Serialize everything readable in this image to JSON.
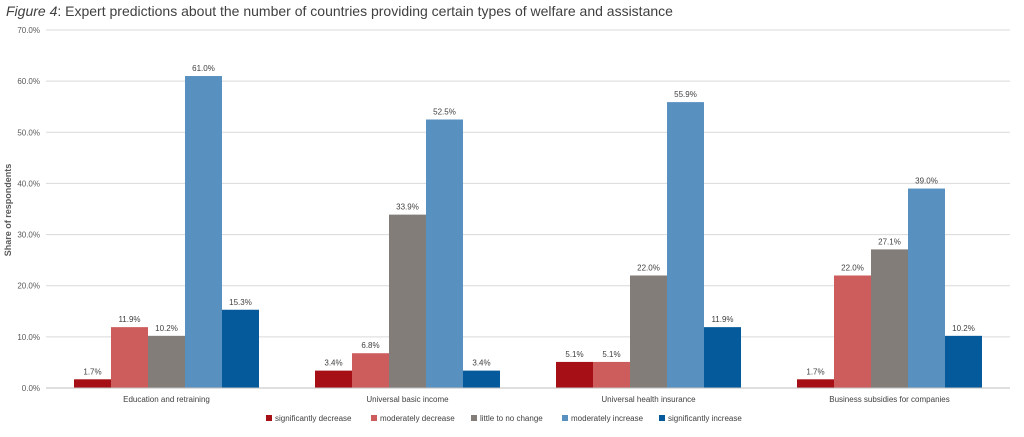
{
  "chart_data": {
    "type": "bar",
    "title_prefix": "Figure 4",
    "title_rest": ": Expert predictions about the number of countries providing certain types of welfare and assistance",
    "ylabel": "Share of respondents",
    "xlabel": "",
    "ylim": [
      0,
      70
    ],
    "yticks": [
      "0.0%",
      "10.0%",
      "20.0%",
      "30.0%",
      "40.0%",
      "50.0%",
      "60.0%",
      "70.0%"
    ],
    "grid": true,
    "legend_position": "bottom",
    "categories": [
      "Education and retraining",
      "Universal basic income",
      "Universal health insurance",
      "Business subsidies for companies"
    ],
    "series": [
      {
        "name": "significantly decrease",
        "color": "#A50F15",
        "values": [
          1.7,
          3.4,
          5.1,
          1.7
        ],
        "labels": [
          "1.7%",
          "3.4%",
          "5.1%",
          "1.7%"
        ]
      },
      {
        "name": "moderately decrease",
        "color": "#CD5C5C",
        "values": [
          11.9,
          6.8,
          5.1,
          22.0
        ],
        "labels": [
          "11.9%",
          "6.8%",
          "5.1%",
          "22.0%"
        ]
      },
      {
        "name": "little to no change",
        "color": "#827D79",
        "values": [
          10.2,
          33.9,
          22.0,
          27.1
        ],
        "labels": [
          "10.2%",
          "33.9%",
          "22.0%",
          "27.1%"
        ]
      },
      {
        "name": "moderately increase",
        "color": "#5890C0",
        "values": [
          61.0,
          52.5,
          55.9,
          39.0
        ],
        "labels": [
          "61.0%",
          "52.5%",
          "55.9%",
          "39.0%"
        ]
      },
      {
        "name": "significantly increase",
        "color": "#045A9A",
        "values": [
          15.3,
          3.4,
          11.9,
          10.2
        ],
        "labels": [
          "15.3%",
          "3.4%",
          "11.9%",
          "10.2%"
        ]
      }
    ]
  }
}
